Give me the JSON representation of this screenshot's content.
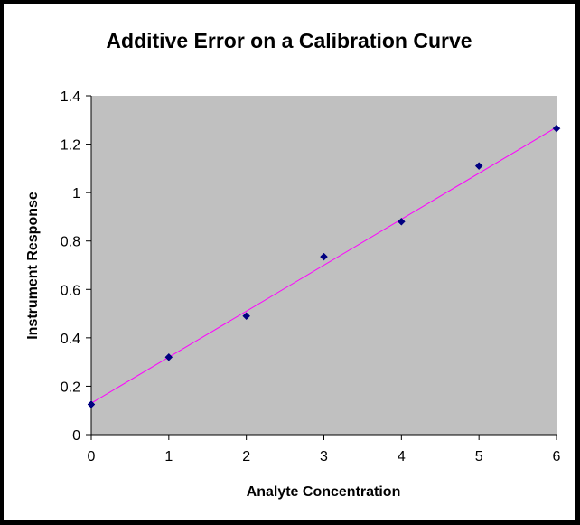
{
  "colors": {
    "background": "#000000",
    "chart_area": "#ffffff",
    "plot_area": "#c0c0c0",
    "marker": "#000080",
    "trendline": "#ff00ff",
    "axis": "#000000"
  },
  "chart_data": {
    "type": "scatter",
    "title": "Additive Error on a Calibration Curve",
    "xlabel": "Analyte Concentration",
    "ylabel": "Instrument Response",
    "xlim": [
      0,
      6
    ],
    "ylim": [
      0,
      1.4
    ],
    "x_ticks": [
      "0",
      "1",
      "2",
      "3",
      "4",
      "5",
      "6"
    ],
    "y_ticks": [
      "0",
      "0.2",
      "0.4",
      "0.6",
      "0.8",
      "1",
      "1.2",
      "1.4"
    ],
    "grid": false,
    "legend": "none",
    "marker": "diamond",
    "series": [
      {
        "x": [
          0,
          1,
          2,
          3,
          4,
          5,
          6
        ],
        "y": [
          0.125,
          0.32,
          0.49,
          0.735,
          0.88,
          1.11,
          1.265
        ]
      }
    ],
    "trendline": {
      "type": "linear",
      "x": [
        0,
        6
      ],
      "y": [
        0.13,
        1.27
      ]
    }
  }
}
